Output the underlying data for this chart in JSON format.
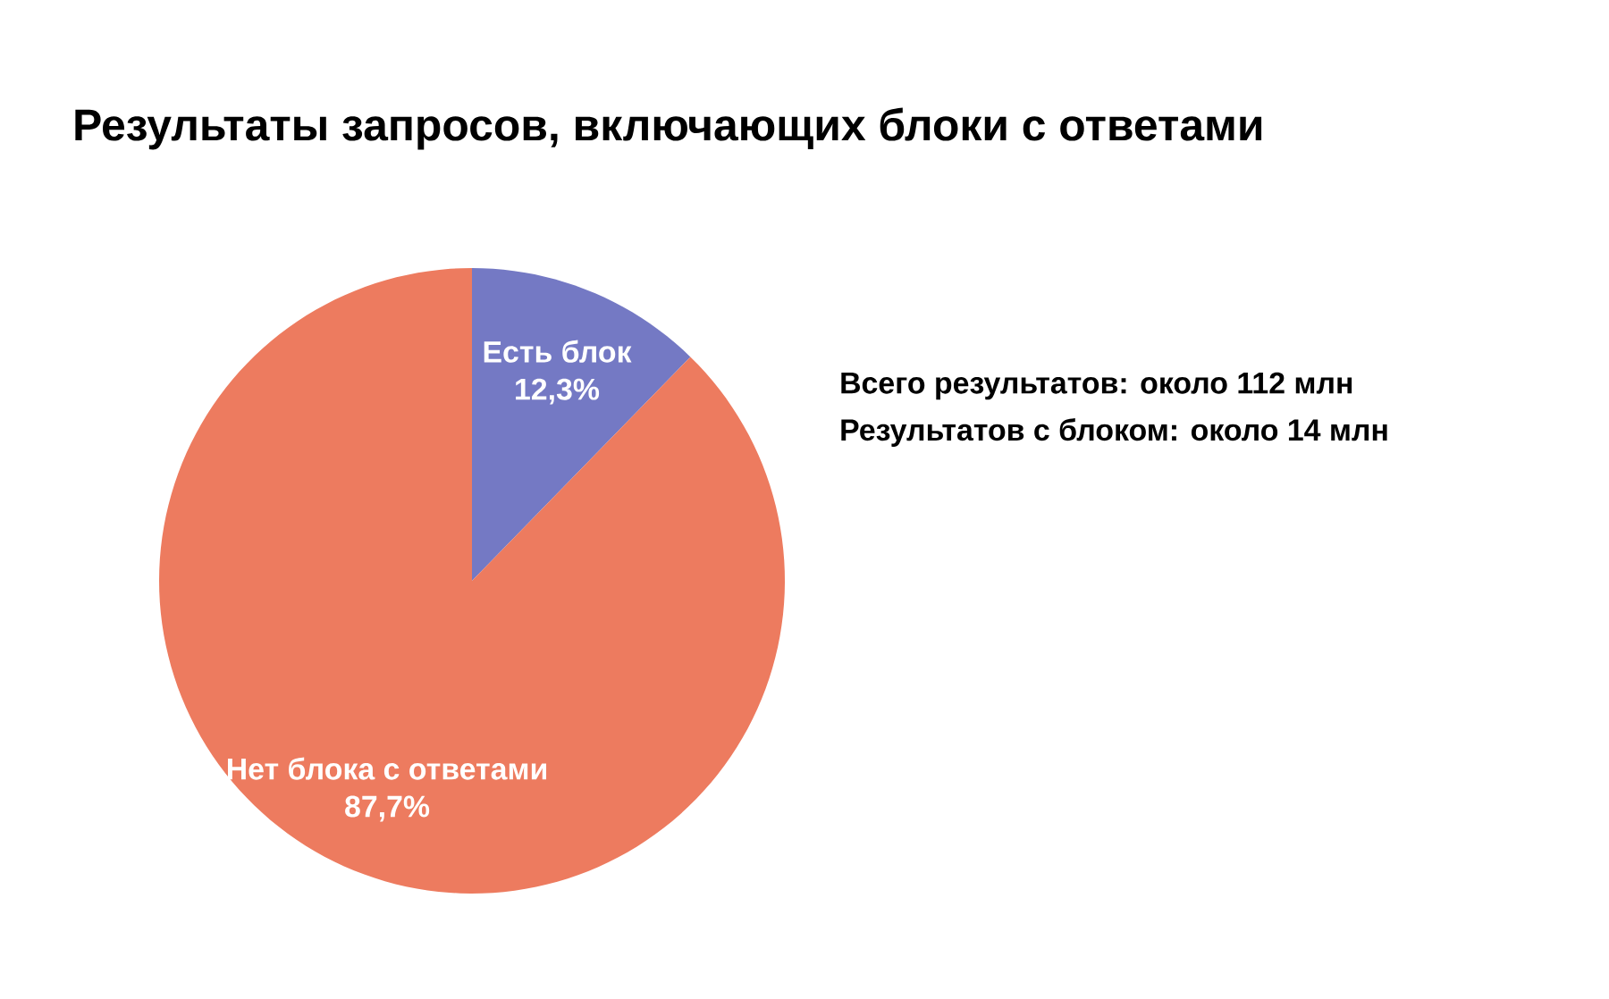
{
  "chart_data": {
    "type": "pie",
    "title": "Результаты запросов, включающих блоки с ответами",
    "categories": [
      "Есть блок",
      "Нет блока с ответами"
    ],
    "values": [
      12.3,
      87.7
    ],
    "colors": [
      "#7479c4",
      "#ed7b5f"
    ],
    "value_labels": [
      "12,3%",
      "87,7%"
    ],
    "annotations": [
      "Всего результатов: около 112 млн",
      "Результатов с блоком: около 14 млн"
    ]
  }
}
